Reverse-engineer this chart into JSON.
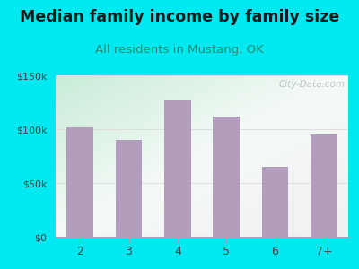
{
  "title": "Median family income by family size",
  "subtitle": "All residents in Mustang, OK",
  "categories": [
    "2",
    "3",
    "4",
    "5",
    "6",
    "7+"
  ],
  "values": [
    102000,
    90000,
    127000,
    112000,
    65000,
    95000
  ],
  "bar_color": "#b39dbd",
  "background_outer": "#00e8f0",
  "title_color": "#1a1a1a",
  "subtitle_color": "#2e8b6e",
  "tick_color": "#444444",
  "ylim": [
    0,
    150000
  ],
  "yticks": [
    0,
    50000,
    100000,
    150000
  ],
  "ytick_labels": [
    "$0",
    "$50k",
    "$100k",
    "$150k"
  ],
  "watermark": "City-Data.com",
  "title_fontsize": 12.5,
  "subtitle_fontsize": 9.5
}
